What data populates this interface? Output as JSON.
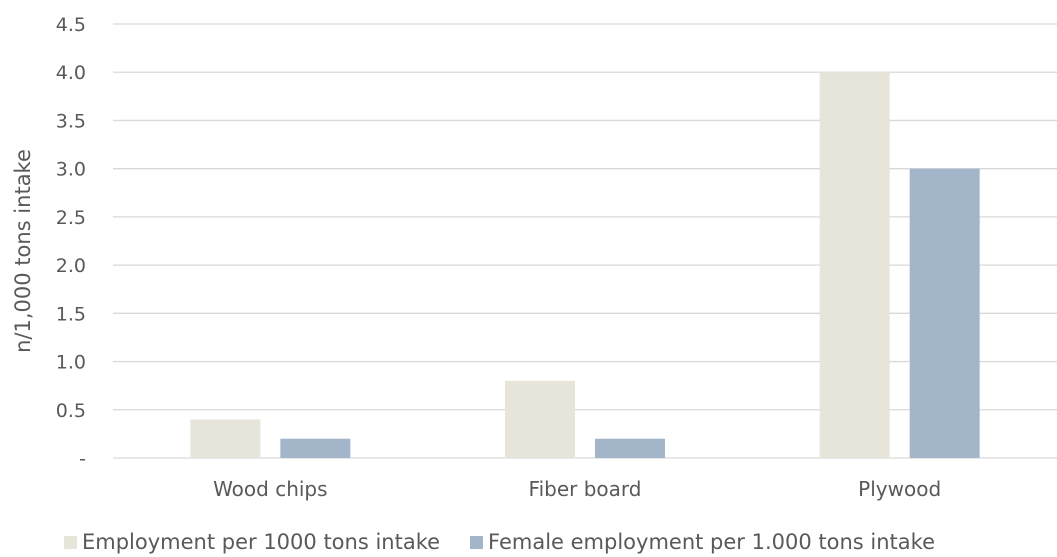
{
  "chart_data": {
    "type": "bar",
    "categories": [
      "Wood chips",
      "Fiber board",
      "Plywood"
    ],
    "series": [
      {
        "name": "Employment per 1000 tons intake",
        "values": [
          0.4,
          0.8,
          4.0
        ],
        "color": "#e7e5da"
      },
      {
        "name": "Female employment per 1.000 tons intake",
        "values": [
          0.2,
          0.2,
          3.0
        ],
        "color": "#a3b6c9"
      }
    ],
    "ylabel": "n/1,000 tons intake",
    "ylim": [
      0,
      4.5
    ],
    "yticks": [
      {
        "value": 0,
        "label": "-"
      },
      {
        "value": 0.5,
        "label": "0.5"
      },
      {
        "value": 1.0,
        "label": "1.0"
      },
      {
        "value": 1.5,
        "label": "1.5"
      },
      {
        "value": 2.0,
        "label": "2.0"
      },
      {
        "value": 2.5,
        "label": "2.5"
      },
      {
        "value": 3.0,
        "label": "3.0"
      },
      {
        "value": 3.5,
        "label": "3.5"
      },
      {
        "value": 4.0,
        "label": "4.0"
      },
      {
        "value": 4.5,
        "label": "4.5"
      }
    ],
    "grid": true,
    "legend_position": "bottom-left"
  }
}
